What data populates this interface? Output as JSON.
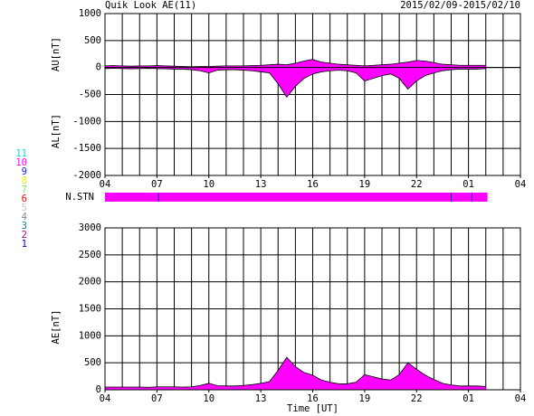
{
  "title": "Quik Look AE(11)",
  "date_range": "2015/02/09-2015/02/10",
  "stations": [
    {
      "label": "11",
      "color": "#00dddd"
    },
    {
      "label": "10",
      "color": "#ff00ff"
    },
    {
      "label": "9",
      "color": "#2020ff"
    },
    {
      "label": "8",
      "color": "#eeee00"
    },
    {
      "label": "7",
      "color": "#66ee66"
    },
    {
      "label": "6",
      "color": "#ff0000"
    },
    {
      "label": "5",
      "color": "#c8c8c8"
    },
    {
      "label": "4",
      "color": "#888888"
    },
    {
      "label": "3",
      "color": "#008888"
    },
    {
      "label": "2",
      "color": "#a000a0"
    },
    {
      "label": "1",
      "color": "#0000cc"
    }
  ],
  "nstn": {
    "label": "N.STN",
    "color": "#ff00ff",
    "range": [
      0,
      22.1
    ],
    "dividers": [
      3.1,
      20,
      21.2
    ]
  },
  "chart_data": [
    {
      "type": "area",
      "ylabels": [
        "AU[nT]",
        "AL[nT]"
      ],
      "x": [
        0,
        0.5,
        1,
        1.5,
        2,
        2.5,
        3,
        3.5,
        4,
        4.5,
        5,
        5.5,
        6,
        6.5,
        7,
        7.5,
        8,
        8.5,
        9,
        9.5,
        10,
        10.5,
        11,
        11.5,
        12,
        12.5,
        13,
        13.5,
        14,
        14.5,
        15,
        15.5,
        16,
        16.5,
        17,
        17.5,
        18,
        18.5,
        19,
        19.5,
        20,
        20.5,
        21,
        21.5,
        22
      ],
      "series": [
        {
          "name": "AU",
          "color": "#ff00ff",
          "values": [
            30,
            35,
            30,
            25,
            30,
            30,
            35,
            30,
            25,
            20,
            15,
            20,
            20,
            25,
            30,
            30,
            30,
            35,
            40,
            50,
            60,
            50,
            80,
            120,
            150,
            100,
            80,
            60,
            50,
            40,
            30,
            40,
            50,
            60,
            80,
            100,
            130,
            120,
            90,
            60,
            50,
            40,
            40,
            40,
            40
          ]
        },
        {
          "name": "AL",
          "color": "#ff00ff",
          "values": [
            -20,
            -15,
            -20,
            -25,
            -20,
            -15,
            -20,
            -25,
            -30,
            -30,
            -40,
            -60,
            -100,
            -50,
            -40,
            -40,
            -50,
            -60,
            -80,
            -100,
            -300,
            -550,
            -350,
            -200,
            -120,
            -80,
            -60,
            -50,
            -60,
            -100,
            -250,
            -200,
            -150,
            -120,
            -200,
            -400,
            -250,
            -150,
            -100,
            -60,
            -40,
            -30,
            -30,
            -30,
            -20
          ]
        }
      ],
      "xlim": [
        0,
        24
      ],
      "xticks": [
        {
          "value": 0,
          "label": "04"
        },
        {
          "value": 3,
          "label": "07"
        },
        {
          "value": 6,
          "label": "10"
        },
        {
          "value": 9,
          "label": "13"
        },
        {
          "value": 12,
          "label": "16"
        },
        {
          "value": 15,
          "label": "19"
        },
        {
          "value": 18,
          "label": "22"
        },
        {
          "value": 21,
          "label": "01"
        },
        {
          "value": 24,
          "label": "04"
        }
      ],
      "xgrid": [
        0,
        1,
        2,
        3,
        4,
        5,
        6,
        7,
        8,
        9,
        10,
        11,
        12,
        13,
        14,
        15,
        16,
        17,
        18,
        19,
        20,
        21,
        22,
        23,
        24
      ],
      "ylim": [
        -2000,
        1000
      ],
      "yticks": [
        1000,
        500,
        0,
        -500,
        -1000,
        -1500,
        -2000
      ]
    },
    {
      "type": "area",
      "ylabels": [
        "AE[nT]"
      ],
      "xlabel": "Time [UT]",
      "x": [
        0,
        0.5,
        1,
        1.5,
        2,
        2.5,
        3,
        3.5,
        4,
        4.5,
        5,
        5.5,
        6,
        6.5,
        7,
        7.5,
        8,
        8.5,
        9,
        9.5,
        10,
        10.5,
        11,
        11.5,
        12,
        12.5,
        13,
        13.5,
        14,
        14.5,
        15,
        15.5,
        16,
        16.5,
        17,
        17.5,
        18,
        18.5,
        19,
        19.5,
        20,
        20.5,
        21,
        21.5,
        22
      ],
      "series": [
        {
          "name": "AE",
          "color": "#ff00ff",
          "values": [
            50,
            50,
            50,
            50,
            50,
            45,
            55,
            55,
            55,
            50,
            55,
            80,
            120,
            75,
            70,
            70,
            80,
            95,
            120,
            150,
            360,
            600,
            430,
            320,
            270,
            180,
            140,
            110,
            110,
            140,
            280,
            240,
            200,
            180,
            280,
            500,
            380,
            270,
            190,
            120,
            90,
            70,
            70,
            70,
            60
          ]
        }
      ],
      "xlim": [
        0,
        24
      ],
      "xticks": [
        {
          "value": 0,
          "label": "04"
        },
        {
          "value": 3,
          "label": "07"
        },
        {
          "value": 6,
          "label": "10"
        },
        {
          "value": 9,
          "label": "13"
        },
        {
          "value": 12,
          "label": "16"
        },
        {
          "value": 15,
          "label": "19"
        },
        {
          "value": 18,
          "label": "22"
        },
        {
          "value": 21,
          "label": "01"
        },
        {
          "value": 24,
          "label": "04"
        }
      ],
      "xgrid": [
        0,
        1,
        2,
        3,
        4,
        5,
        6,
        7,
        8,
        9,
        10,
        11,
        12,
        13,
        14,
        15,
        16,
        17,
        18,
        19,
        20,
        21,
        22,
        23,
        24
      ],
      "ylim": [
        0,
        3000
      ],
      "yticks": [
        3000,
        2500,
        2000,
        1500,
        1000,
        500,
        0
      ]
    }
  ]
}
